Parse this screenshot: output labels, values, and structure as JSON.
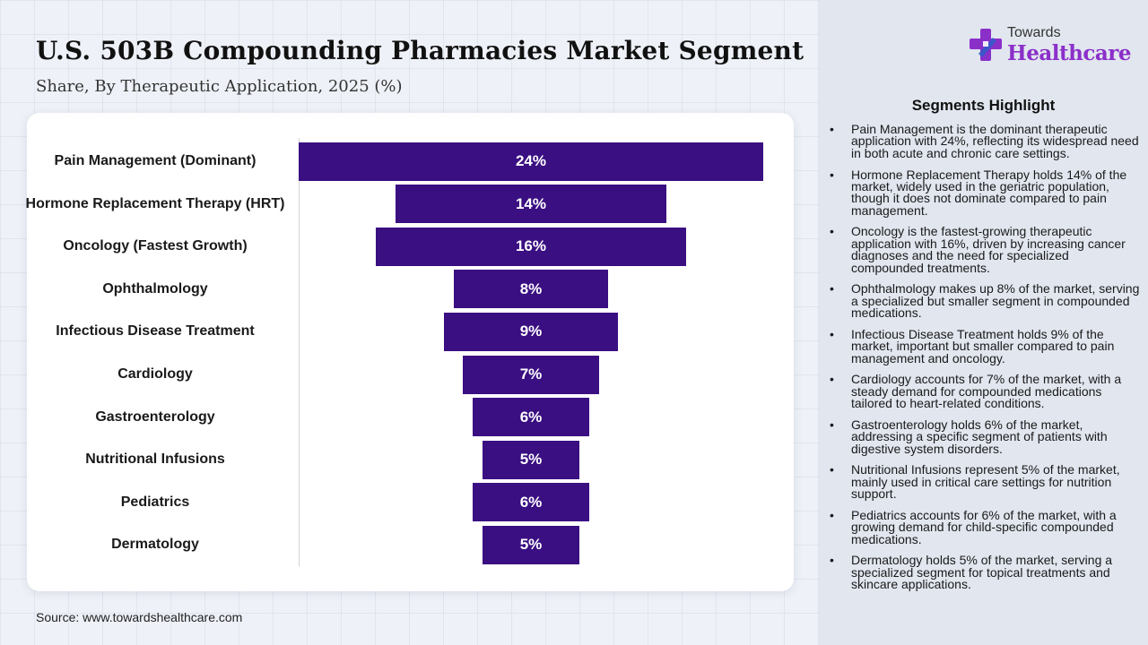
{
  "header": {
    "title": "U.S. 503B Compounding Pharmacies Market Segment",
    "subtitle": "Share, By Therapeutic Application, 2025 (%)"
  },
  "source": "Source: www.towardshealthcare.com",
  "brand": {
    "top": "Towards",
    "main": "Healthcare",
    "icon": "plus-cross-logo-icon",
    "colors": {
      "purple": "#8b2fc9",
      "blue": "#2f5cc9"
    }
  },
  "colors": {
    "bar": "#3a0f82",
    "bar_text": "#ffffff"
  },
  "chart_data": {
    "type": "bar",
    "title": "U.S. 503B Compounding Pharmacies Market Segment",
    "subtitle": "Share, By Therapeutic Application, 2025 (%)",
    "categories": [
      "Pain Management (Dominant)",
      "Hormone Replacement Therapy (HRT)",
      "Oncology (Fastest Growth)",
      "Ophthalmology",
      "Infectious Disease Treatment",
      "Cardiology",
      "Gastroenterology",
      "Nutritional Infusions",
      "Pediatrics",
      "Dermatology"
    ],
    "values": [
      24,
      14,
      16,
      8,
      9,
      7,
      6,
      5,
      6,
      5
    ],
    "data_labels": [
      "24%",
      "14%",
      "16%",
      "8%",
      "9%",
      "7%",
      "6%",
      "5%",
      "6%",
      "5%"
    ],
    "orientation": "horizontal-centered",
    "grid": false
  },
  "panel": {
    "heading": "Segments Highlight",
    "bullet": "•",
    "items": [
      "Pain Management is the dominant therapeutic application with 24%, reflecting its widespread need in both acute and chronic care settings.",
      "Hormone Replacement Therapy holds 14% of the market, widely used in the geriatric population, though it does not dominate compared to pain management.",
      "Oncology is the fastest-growing therapeutic application with 16%, driven by increasing cancer diagnoses and the need for specialized compounded treatments.",
      "Ophthalmology makes up 8% of the market, serving a specialized but smaller segment in compounded medications.",
      "Infectious Disease Treatment holds 9% of the market, important but smaller compared to pain management and oncology.",
      "Cardiology accounts for 7% of the market, with a steady demand for compounded medications tailored to heart-related conditions.",
      "Gastroenterology holds 6% of the market, addressing a specific segment of patients with digestive system disorders.",
      "Nutritional Infusions represent 5% of the market, mainly used in critical care settings for nutrition support.",
      "Pediatrics accounts for 6% of the market, with a growing demand for child-specific compounded medications.",
      "Dermatology holds 5% of the market, serving a specialized segment for topical treatments and skincare applications."
    ]
  }
}
